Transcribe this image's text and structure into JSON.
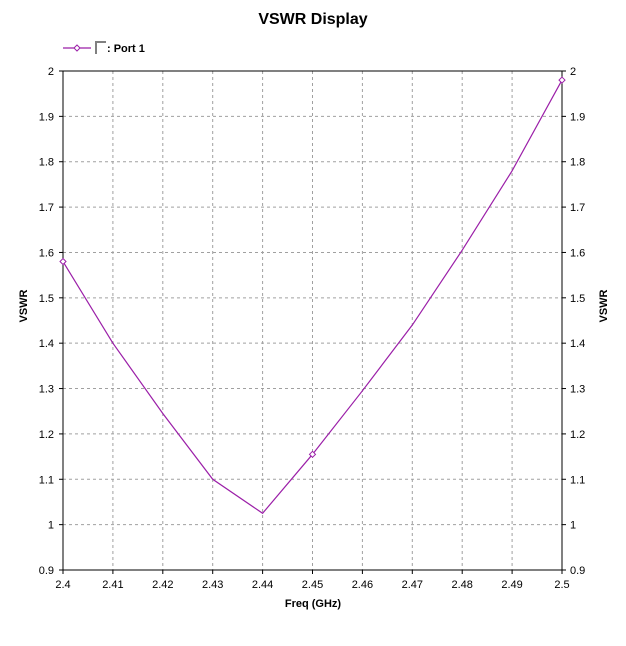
{
  "chart_data": {
    "type": "line",
    "title": "VSWR Display",
    "xlabel": "Freq (GHz)",
    "ylabel": "VSWR",
    "y2label": "VSWR",
    "xlim": [
      2.4,
      2.5
    ],
    "ylim": [
      0.9,
      2.0
    ],
    "x_ticks": [
      "2.4",
      "2.41",
      "2.42",
      "2.43",
      "2.44",
      "2.45",
      "2.46",
      "2.47",
      "2.48",
      "2.49",
      "2.5"
    ],
    "y_ticks": [
      "0.9",
      "1",
      "1.1",
      "1.2",
      "1.3",
      "1.4",
      "1.5",
      "1.6",
      "1.7",
      "1.8",
      "1.9",
      "2"
    ],
    "grid": true,
    "legend_position": "top-left",
    "series": [
      {
        "name": ": Port 1",
        "color": "#9b1fa8",
        "x": [
          2.4,
          2.41,
          2.42,
          2.43,
          2.44,
          2.45,
          2.46,
          2.47,
          2.48,
          2.49,
          2.5
        ],
        "y": [
          1.58,
          1.4,
          1.245,
          1.1,
          1.025,
          1.155,
          1.295,
          1.44,
          1.605,
          1.78,
          1.98
        ],
        "marker_x": [
          2.4,
          2.45,
          2.5
        ]
      }
    ]
  }
}
